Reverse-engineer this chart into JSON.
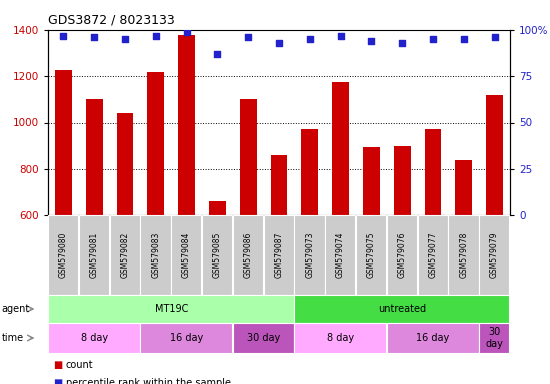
{
  "title": "GDS3872 / 8023133",
  "samples": [
    "GSM579080",
    "GSM579081",
    "GSM579082",
    "GSM579083",
    "GSM579084",
    "GSM579085",
    "GSM579086",
    "GSM579087",
    "GSM579073",
    "GSM579074",
    "GSM579075",
    "GSM579076",
    "GSM579077",
    "GSM579078",
    "GSM579079"
  ],
  "counts": [
    1225,
    1100,
    1040,
    1220,
    1380,
    660,
    1100,
    860,
    970,
    1175,
    895,
    900,
    970,
    840,
    1120
  ],
  "percentiles": [
    97,
    96,
    95,
    97,
    99,
    87,
    96,
    93,
    95,
    97,
    94,
    93,
    95,
    95,
    96
  ],
  "ylim_left": [
    600,
    1400
  ],
  "ylim_right": [
    0,
    100
  ],
  "yticks_left": [
    600,
    800,
    1000,
    1200,
    1400
  ],
  "yticks_right": [
    0,
    25,
    50,
    75,
    100
  ],
  "bar_color": "#cc0000",
  "dot_color": "#2222cc",
  "agent_groups": [
    {
      "label": "MT19C",
      "start": 0,
      "end": 8,
      "color": "#aaffaa"
    },
    {
      "label": "untreated",
      "start": 8,
      "end": 15,
      "color": "#44dd44"
    }
  ],
  "time_groups": [
    {
      "label": "8 day",
      "start": 0,
      "end": 3,
      "color": "#ffaaff"
    },
    {
      "label": "16 day",
      "start": 3,
      "end": 6,
      "color": "#dd88dd"
    },
    {
      "label": "30 day",
      "start": 6,
      "end": 8,
      "color": "#bb55bb"
    },
    {
      "label": "8 day",
      "start": 8,
      "end": 11,
      "color": "#ffaaff"
    },
    {
      "label": "16 day",
      "start": 11,
      "end": 14,
      "color": "#dd88dd"
    },
    {
      "label": "30\nday",
      "start": 14,
      "end": 15,
      "color": "#bb55bb"
    }
  ],
  "legend_count_label": "count",
  "legend_pct_label": "percentile rank within the sample",
  "tick_area_color": "#cccccc"
}
